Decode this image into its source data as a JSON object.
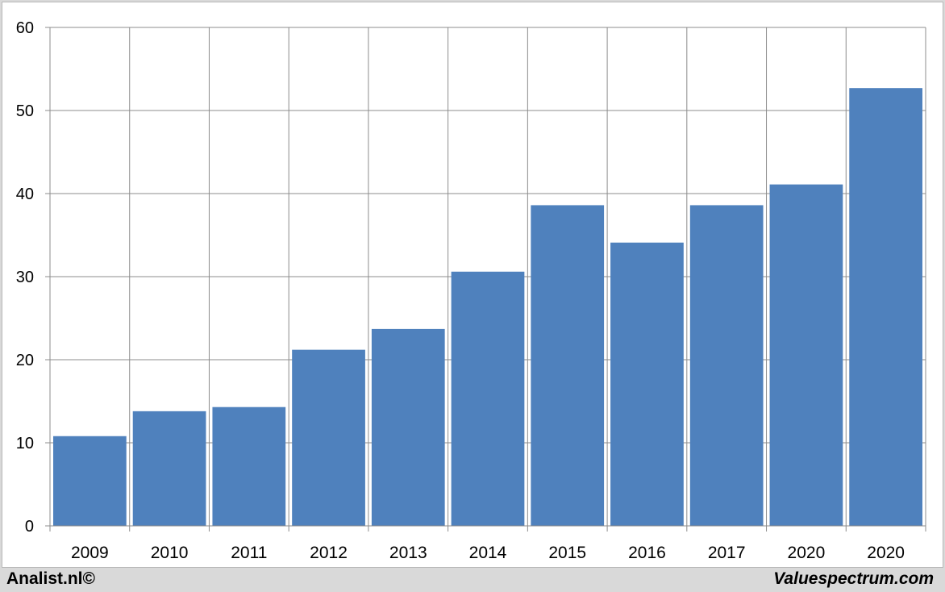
{
  "chart_data": {
    "type": "bar",
    "categories": [
      "2009",
      "2010",
      "2011",
      "2012",
      "2013",
      "2014",
      "2015",
      "2016",
      "2017",
      "2020",
      "2020"
    ],
    "values": [
      10.8,
      13.8,
      14.3,
      21.2,
      23.7,
      30.6,
      38.6,
      34.1,
      38.6,
      41.1,
      52.7
    ],
    "title": "",
    "xlabel": "",
    "ylabel": "",
    "ylim": [
      0,
      60
    ],
    "yticks": [
      0,
      10,
      20,
      30,
      40,
      50,
      60
    ],
    "grid": true,
    "bar_color": "#4f81bd"
  },
  "footer": {
    "left": "Analist.nl©",
    "right": "Valuespectrum.com"
  }
}
